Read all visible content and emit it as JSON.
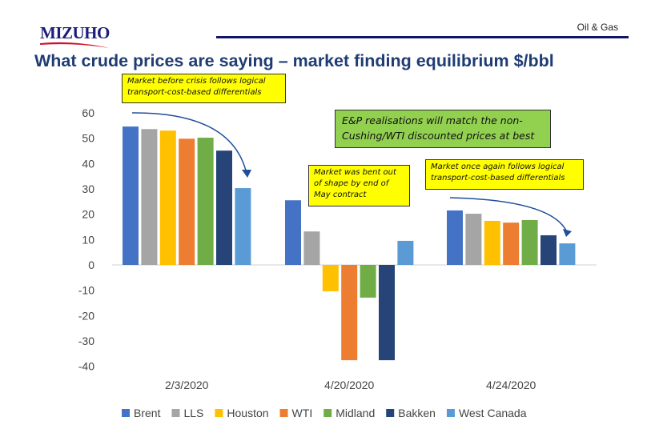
{
  "header": {
    "logo": "MIZUHO",
    "section": "Oil & Gas",
    "title": "What crude prices are saying – market finding equilibrium $/bbl"
  },
  "annotations": [
    "Market before crisis follows logical transport-cost-based differentials",
    "E&P realisations will match the non-Cushing/WTI discounted prices at best",
    "Market was bent out of shape by end of May contract",
    "Market once again follows logical transport-cost-based differentials"
  ],
  "chart_data": {
    "type": "bar",
    "title": "What crude prices are saying – market finding equilibrium $/bbl",
    "xlabel": "",
    "ylabel": "$/bbl",
    "ylim": [
      -40,
      60
    ],
    "yticks": [
      60,
      50,
      40,
      30,
      20,
      10,
      0,
      -10,
      -20,
      -30,
      -40
    ],
    "grid": false,
    "legend_position": "bottom",
    "categories": [
      "2/3/2020",
      "4/20/2020",
      "4/24/2020"
    ],
    "series": [
      {
        "name": "Brent",
        "color": "#4472C4",
        "values": [
          54.6,
          25.5,
          21.5
        ]
      },
      {
        "name": "LLS",
        "color": "#A5A5A5",
        "values": [
          53.6,
          13.2,
          20.2
        ]
      },
      {
        "name": "Houston",
        "color": "#FFC000",
        "values": [
          53.0,
          -10.4,
          17.4
        ]
      },
      {
        "name": "WTI",
        "color": "#ED7D31",
        "values": [
          49.8,
          -37.6,
          16.7
        ]
      },
      {
        "name": "Midland",
        "color": "#70AD47",
        "values": [
          50.2,
          -12.9,
          17.7
        ]
      },
      {
        "name": "Bakken",
        "color": "#264478",
        "values": [
          45.1,
          -37.6,
          11.7
        ]
      },
      {
        "name": "West Canada",
        "color": "#5B9BD5",
        "values": [
          30.3,
          9.5,
          8.5
        ]
      }
    ]
  }
}
